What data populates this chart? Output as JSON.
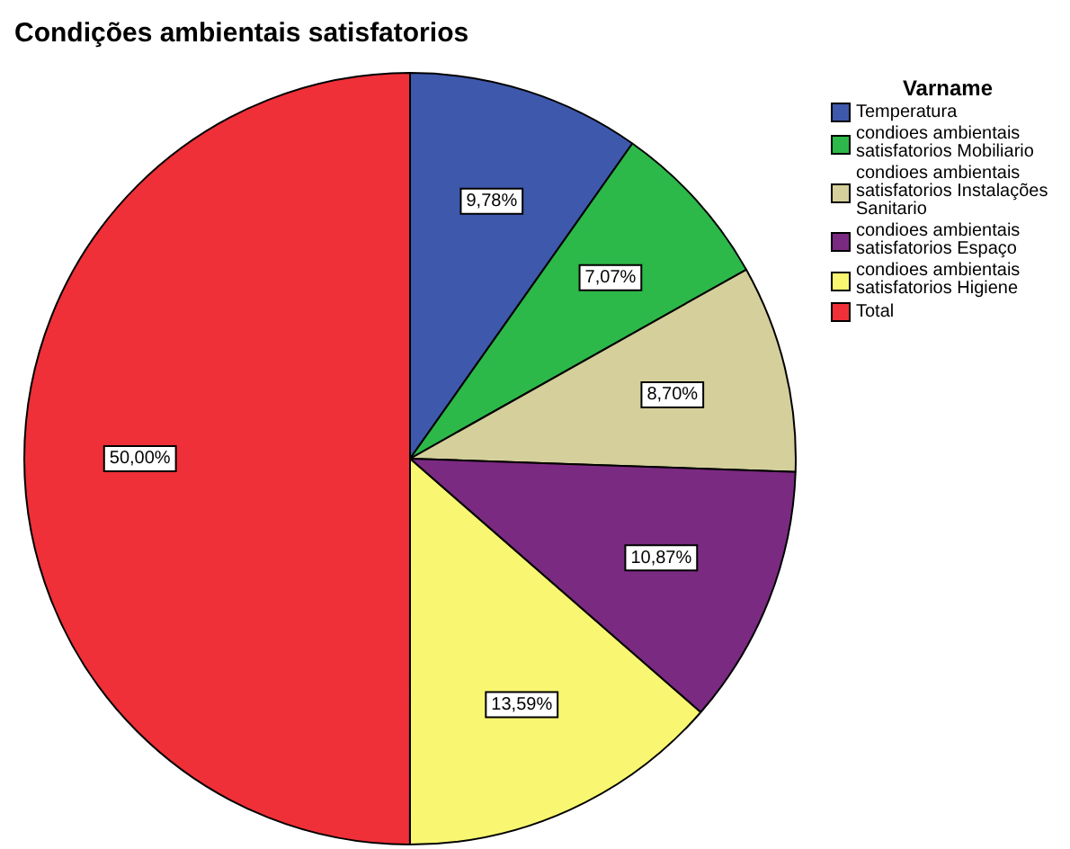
{
  "chart_data": {
    "type": "pie",
    "title": "Condições ambientais satisfatorios",
    "legend_title": "Varname",
    "legend": "top right",
    "value_labels": [
      "9,78%",
      "7,07%",
      "8,70%",
      "10,87%",
      "13,59%",
      "50,00%"
    ],
    "categories": [
      "Temperatura",
      "condioes ambientais satisfatorios Mobiliario",
      "condioes ambientais satisfatorios Instalações Sanitario",
      "condioes ambientais satisfatorios Espaço",
      "condioes ambientais satisfatorios Higiene",
      "Total"
    ],
    "values": [
      9.78,
      7.07,
      8.7,
      10.87,
      13.59,
      50.0
    ],
    "colors": [
      "#3e58ac",
      "#2db84a",
      "#d5cf9b",
      "#7b2a82",
      "#f9f771",
      "#ef3038"
    ]
  }
}
